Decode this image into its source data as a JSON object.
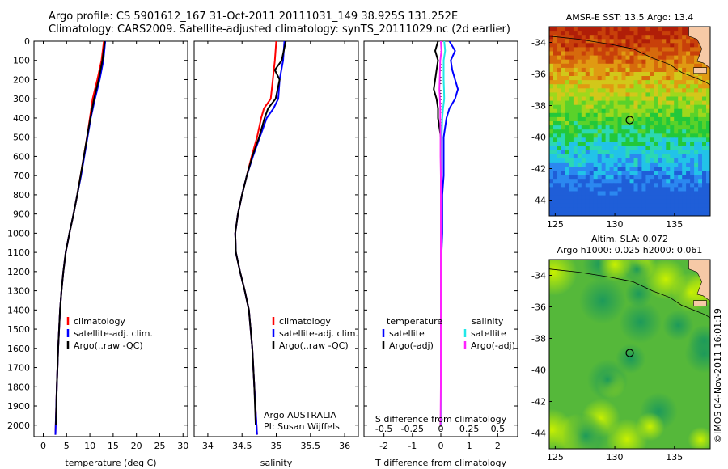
{
  "header": {
    "line1": "Argo profile: CS 5901612_167 31-Oct-2011 20111031_149 38.925S 131.252E",
    "line2": "Climatology: CARS2009. Satellite-adjusted climatology: synTS_20111029.nc (2d earlier)"
  },
  "colors": {
    "climatology": "#ff0000",
    "satellite": "#0000ff",
    "argo": "#000000",
    "salinity_satellite": "#00e5e5",
    "salinity_argo": "#ff00ff"
  },
  "chart_data": [
    {
      "type": "line",
      "xlabel": "temperature (deg C)",
      "xlim": [
        -2,
        31
      ],
      "ylim": [
        2060,
        0
      ],
      "xticks": [
        "0",
        "5",
        "10",
        "15",
        "20",
        "25",
        "30"
      ],
      "yticks": [
        "0",
        "100",
        "200",
        "300",
        "400",
        "500",
        "600",
        "700",
        "800",
        "900",
        "1000",
        "1100",
        "1200",
        "1300",
        "1400",
        "1500",
        "1600",
        "1700",
        "1800",
        "1900",
        "2000"
      ],
      "legend": [
        "climatology",
        "satellite-adj. clim.",
        "Argo(..raw -QC)"
      ],
      "legend_position": "lower-center",
      "series": [
        {
          "name": "climatology",
          "color": "red",
          "depth": [
            0,
            100,
            200,
            300,
            400,
            500,
            600,
            700,
            800,
            900,
            1000,
            1100,
            1200,
            1300,
            1400,
            1600,
            1800,
            2050
          ],
          "values": [
            13.0,
            12.5,
            11.6,
            10.6,
            10.0,
            9.4,
            8.7,
            8.0,
            7.3,
            6.5,
            5.6,
            4.8,
            4.3,
            3.9,
            3.6,
            3.2,
            2.9,
            2.6
          ]
        },
        {
          "name": "satellite-adj. clim.",
          "color": "blue",
          "depth": [
            0,
            100,
            200,
            300,
            400,
            500,
            600,
            700,
            800,
            900,
            1000,
            1100,
            1200,
            1300,
            1400,
            1600,
            1800,
            2050
          ],
          "values": [
            13.3,
            12.9,
            12.1,
            11.1,
            10.2,
            9.5,
            8.8,
            8.1,
            7.3,
            6.5,
            5.6,
            4.8,
            4.3,
            3.9,
            3.6,
            3.2,
            2.9,
            2.6
          ]
        },
        {
          "name": "Argo(..raw -QC)",
          "color": "black",
          "depth": [
            0,
            100,
            200,
            300,
            400,
            500,
            600,
            700,
            800,
            900,
            1000,
            1100,
            1200,
            1300,
            1400,
            1600,
            1800,
            2000
          ],
          "values": [
            13.2,
            12.7,
            11.9,
            10.9,
            10.1,
            9.4,
            8.7,
            8.0,
            7.3,
            6.5,
            5.6,
            4.8,
            4.3,
            3.9,
            3.6,
            3.2,
            2.9,
            2.7
          ]
        }
      ]
    },
    {
      "type": "line",
      "xlabel": "salinity",
      "xlim": [
        33.8,
        36.2
      ],
      "ylim": [
        2060,
        0
      ],
      "xticks": [
        "34",
        "34.5",
        "35",
        "35.5",
        "36"
      ],
      "legend": [
        "climatology",
        "satellite-adj. clim.",
        "Argo(..raw -QC)"
      ],
      "annotation": [
        "Argo AUSTRALIA",
        "PI: Susan Wijffels"
      ],
      "series": [
        {
          "name": "climatology",
          "color": "red",
          "depth": [
            0,
            100,
            200,
            300,
            350,
            400,
            500,
            600,
            700,
            800,
            900,
            1000,
            1100,
            1200,
            1300,
            1400,
            1600,
            1800,
            2050
          ],
          "values": [
            35.0,
            34.98,
            34.95,
            34.92,
            34.82,
            34.78,
            34.72,
            34.64,
            34.57,
            34.5,
            34.44,
            34.4,
            34.41,
            34.47,
            34.54,
            34.6,
            34.65,
            34.68,
            34.72
          ]
        },
        {
          "name": "satellite-adj. clim.",
          "color": "blue",
          "depth": [
            0,
            100,
            200,
            300,
            350,
            400,
            500,
            600,
            700,
            800,
            900,
            1000,
            1100,
            1200,
            1300,
            1400,
            1600,
            1800,
            2050
          ],
          "values": [
            35.12,
            35.1,
            35.05,
            35.03,
            34.96,
            34.86,
            34.76,
            34.66,
            34.57,
            34.5,
            34.44,
            34.4,
            34.41,
            34.47,
            34.54,
            34.6,
            34.65,
            34.68,
            34.72
          ]
        },
        {
          "name": "Argo(..raw -QC)",
          "color": "black",
          "depth": [
            0,
            100,
            150,
            200,
            300,
            350,
            400,
            500,
            600,
            700,
            800,
            900,
            1000,
            1100,
            1200,
            1300,
            1400,
            1600,
            1800,
            2000
          ],
          "values": [
            35.14,
            35.08,
            34.98,
            35.05,
            34.99,
            34.88,
            34.83,
            34.75,
            34.65,
            34.57,
            34.5,
            34.44,
            34.4,
            34.41,
            34.47,
            34.54,
            34.6,
            34.65,
            34.68,
            34.7
          ]
        }
      ]
    },
    {
      "type": "line",
      "xlabel": "T difference from climatology",
      "xlabel_top": "S difference from climatology",
      "xlim": [
        -2.7,
        2.7
      ],
      "ylim": [
        2060,
        0
      ],
      "xticks": [
        "-2",
        "-1",
        "0",
        "1",
        "2"
      ],
      "xticks_salinity": [
        "-0.5",
        "-0.25",
        "0",
        "0.25",
        "0.5"
      ],
      "legend": {
        "temperature_title": "temperature",
        "salinity_title": "salinity",
        "temperature": [
          "satellite",
          "Argo(-adj)"
        ],
        "salinity": [
          "satellite",
          "Argo(-adj)"
        ]
      },
      "series": [
        {
          "name": "satellite",
          "group": "temperature",
          "color": "blue",
          "depth": [
            0,
            50,
            100,
            150,
            200,
            250,
            300,
            350,
            400,
            500,
            600,
            700,
            800,
            900,
            1000,
            1200,
            1400,
            1600,
            1800,
            2000
          ],
          "values": [
            0.3,
            0.5,
            0.35,
            0.4,
            0.5,
            0.6,
            0.5,
            0.3,
            0.2,
            0.1,
            0.1,
            0.1,
            0.05,
            0.05,
            0.05,
            0.0,
            0.0,
            0.0,
            0.0,
            0.0
          ]
        },
        {
          "name": "Argo(-adj)",
          "group": "temperature",
          "color": "black",
          "depth": [
            0,
            50,
            100,
            150,
            200,
            250,
            300,
            350,
            400,
            500,
            600,
            700,
            800,
            900,
            1000,
            1200,
            1400,
            1600,
            1800,
            2000
          ],
          "values": [
            -0.1,
            -0.2,
            -0.1,
            -0.15,
            -0.2,
            -0.25,
            -0.15,
            -0.1,
            -0.1,
            0.0,
            0.0,
            0.0,
            0.0,
            0.0,
            0.0,
            0.0,
            0.0,
            0.0,
            0.0,
            0.0
          ]
        },
        {
          "name": "satellite",
          "group": "salinity",
          "color": "cyan",
          "depth": [
            0,
            50,
            100,
            150,
            200,
            250,
            300,
            350,
            400,
            500,
            600,
            700,
            800,
            900,
            1000,
            1200,
            1400,
            1600,
            1800,
            2000
          ],
          "values": [
            0.12,
            0.15,
            0.1,
            0.1,
            0.1,
            0.11,
            0.12,
            0.08,
            0.05,
            0.03,
            0.02,
            0.01,
            0.01,
            0.01,
            0.0,
            0.0,
            0.0,
            0.0,
            0.0,
            0.0
          ]
        },
        {
          "name": "Argo(-adj)",
          "group": "salinity",
          "color": "magenta",
          "depth": [
            0,
            50,
            100,
            150,
            200,
            250,
            300,
            350,
            400,
            500,
            600,
            700,
            800,
            900,
            1000,
            1200,
            1400,
            1600,
            1800,
            2000
          ],
          "values": [
            0.0,
            0.02,
            -0.02,
            -0.03,
            -0.04,
            -0.05,
            -0.03,
            -0.02,
            -0.02,
            -0.01,
            -0.01,
            0.0,
            0.0,
            0.0,
            0.0,
            0.0,
            0.0,
            0.0,
            0.0,
            -0.01
          ]
        }
      ]
    },
    {
      "type": "heatmap",
      "title": "AMSR-E SST: 13.5 Argo: 13.4",
      "xlim": [
        124.5,
        138
      ],
      "ylim": [
        -45,
        -33
      ],
      "xticks": [
        "125",
        "130",
        "135"
      ],
      "yticks": [
        "-34",
        "-36",
        "-38",
        "-40",
        "-42",
        "-44"
      ],
      "marker": {
        "lon": 131.25,
        "lat": -38.925
      }
    },
    {
      "type": "heatmap",
      "title": "Altim. SLA: 0.072",
      "subtitle": "Argo h1000: 0.025 h2000: 0.061",
      "xlim": [
        124.5,
        138
      ],
      "ylim": [
        -45,
        -33
      ],
      "xticks": [
        "125",
        "130",
        "135"
      ],
      "yticks": [
        "-34",
        "-36",
        "-38",
        "-40",
        "-42",
        "-44"
      ],
      "marker": {
        "lon": 131.25,
        "lat": -38.925
      }
    }
  ],
  "watermark": "©IMOS 04-Nov-2011 16:01:19"
}
